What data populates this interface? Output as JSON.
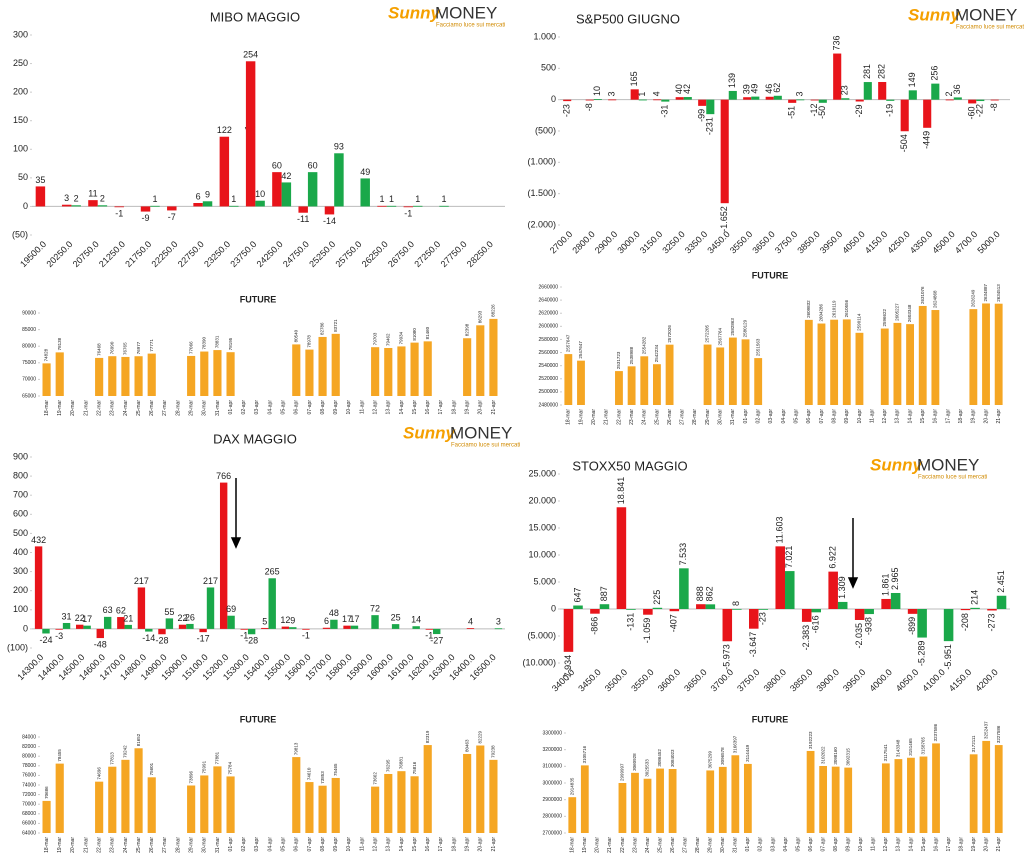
{
  "logo": {
    "brand": "Sunny",
    "name": "MONEY",
    "tagline": "Facciamo luce sui mercati"
  },
  "chart_data": [
    {
      "type": "bar",
      "title": "MIBO MAGGIO",
      "categories": [
        "19500.0",
        "20250.0",
        "20750.0",
        "21250.0",
        "21750.0",
        "22250.0",
        "22750.0",
        "23250.0",
        "23750.0",
        "24250.0",
        "24750.0",
        "25250.0",
        "25750.0",
        "26250.0",
        "26750.0",
        "27250.0",
        "27750.0",
        "28250.0"
      ],
      "series": [
        {
          "color": "#e8141a",
          "values": [
            35,
            3,
            11,
            -1,
            -9,
            -7,
            6,
            122,
            254,
            60,
            -11,
            -14,
            null,
            1,
            -1,
            null,
            null,
            null
          ]
        },
        {
          "color": "#1aa84a",
          "values": [
            null,
            2,
            2,
            null,
            1,
            null,
            9,
            1,
            10,
            42,
            60,
            93,
            49,
            1,
            1,
            1,
            null,
            null
          ]
        }
      ],
      "ylim": [
        -50,
        300
      ],
      "yticks": [
        {
          "value": -50,
          "label": "(50)"
        },
        0,
        50,
        100,
        150,
        200,
        250,
        300
      ]
    },
    {
      "type": "bar",
      "title": "FUTURE",
      "categories": [
        "18-mar",
        "19-mar",
        "20-mar",
        "21-mar",
        "22-mar",
        "23-mar",
        "24-mar",
        "25-mar",
        "26-mar",
        "27-mar",
        "28-mar",
        "29-mar",
        "30-mar",
        "31-mar",
        "01-apr",
        "02-apr",
        "03-apr",
        "04-apr",
        "05-apr",
        "06-apr",
        "07-apr",
        "08-apr",
        "09-apr",
        "10-apr",
        "11-apr",
        "12-apr",
        "13-apr",
        "14-apr",
        "15-apr",
        "16-apr",
        "17-apr",
        "18-apr",
        "19-apr",
        "20-apr",
        "21-apr"
      ],
      "series": [
        {
          "color": "#f5a623",
          "values": [
            74828,
            78138,
            null,
            null,
            76468,
            76990,
            76765,
            76977,
            77771,
            null,
            null,
            77066,
            78390,
            78831,
            78195,
            null,
            null,
            null,
            null,
            80540,
            78978,
            82786,
            83721,
            null,
            null,
            79703,
            79462,
            79934,
            81080,
            81460,
            null,
            null,
            82398,
            86293,
            88226
          ]
        }
      ],
      "ylim": [
        65000,
        90000
      ],
      "yticks": [
        65000,
        70000,
        75000,
        80000,
        85000,
        90000
      ]
    },
    {
      "type": "bar",
      "title": "S&P500 GIUGNO",
      "categories": [
        "2700.0",
        "2800.0",
        "2900.0",
        "3000.0",
        "3150.0",
        "3250.0",
        "3350.0",
        "3450.0",
        "3550.0",
        "3650.0",
        "3750.0",
        "3850.0",
        "3950.0",
        "4050.0",
        "4150.0",
        "4250.0",
        "4350.0",
        "4500.0",
        "4700.0",
        "5000.0"
      ],
      "series": [
        {
          "color": "#e8141a",
          "values": [
            -23,
            -8,
            3,
            165,
            4,
            40,
            -99,
            -1652,
            39,
            46,
            -51,
            -12,
            736,
            -29,
            282,
            -504,
            -449,
            2,
            -60,
            -8
          ],
          "value_labels": [
            "-23",
            "-8",
            "3",
            "165",
            "4",
            "40",
            "-99",
            "-1.652",
            "39",
            "46",
            "-51",
            "-12",
            "736",
            "-29",
            "282",
            "-504",
            "-449",
            "2",
            "-60",
            "-8"
          ]
        },
        {
          "color": "#1aa84a",
          "values": [
            null,
            10,
            null,
            1,
            -31,
            42,
            -231,
            139,
            49,
            62,
            3,
            -50,
            23,
            281,
            -19,
            149,
            256,
            36,
            -22,
            null
          ]
        }
      ],
      "ylim": [
        -2000,
        1000
      ],
      "yticks": [
        {
          "value": -2000,
          "label": "(2.000)"
        },
        {
          "value": -1500,
          "label": "(1.500)"
        },
        {
          "value": -1000,
          "label": "(1.000)"
        },
        {
          "value": -500,
          "label": "(500)"
        },
        0,
        500,
        {
          "value": 1000,
          "label": "1.000"
        }
      ]
    },
    {
      "type": "bar",
      "title": "FUTURE",
      "categories": [
        "18-mar",
        "19-mar",
        "20-mar",
        "21-mar",
        "22-mar",
        "23-mar",
        "24-mar",
        "25-mar",
        "26-mar",
        "27-mar",
        "28-mar",
        "29-mar",
        "30-mar",
        "31-mar",
        "01-apr",
        "02-apr",
        "03-apr",
        "04-apr",
        "05-apr",
        "06-apr",
        "07-apr",
        "08-apr",
        "09-apr",
        "10-apr",
        "11-apr",
        "12-apr",
        "13-apr",
        "14-apr",
        "15-apr",
        "16-apr",
        "17-apr",
        "18-apr",
        "19-apr",
        "20-apr",
        "21-apr"
      ],
      "series": [
        {
          "color": "#f5a623",
          "values": [
            2557647,
            2547647,
            null,
            null,
            2531723,
            2538988,
            2554282,
            2542234,
            2572026,
            null,
            null,
            2572205,
            2567764,
            2582863,
            2580129,
            2551563,
            null,
            null,
            null,
            2609832,
            2604286,
            2610119,
            2610556,
            2590114,
            null,
            2596622,
            2605227,
            2603348,
            2631076,
            2624868,
            null,
            null,
            2626249,
            2634887,
            2634513
          ]
        }
      ],
      "ylim": [
        2480000,
        2660000
      ],
      "yticks": [
        2480000,
        2500000,
        2520000,
        2540000,
        2560000,
        2580000,
        2600000,
        2620000,
        2640000,
        2660000
      ]
    },
    {
      "type": "bar",
      "title": "DAX MAGGIO",
      "categories": [
        "14300.0",
        "14400.0",
        "14500.0",
        "14600.0",
        "14700.0",
        "14800.0",
        "14900.0",
        "15000.0",
        "15100.0",
        "15200.0",
        "15300.0",
        "15400.0",
        "15500.0",
        "15600.0",
        "15700.0",
        "15800.0",
        "15900.0",
        "16000.0",
        "16100.0",
        "16200.0",
        "16300.0",
        "16400.0",
        "16500.0"
      ],
      "series": [
        {
          "color": "#e8141a",
          "values": [
            432,
            -3,
            22,
            -48,
            62,
            217,
            -28,
            22,
            -17,
            766,
            -1,
            5,
            12,
            -1,
            6,
            17,
            null,
            null,
            null,
            -1,
            null,
            4,
            null
          ]
        },
        {
          "color": "#1aa84a",
          "values": [
            -24,
            31,
            17,
            63,
            21,
            -14,
            55,
            26,
            217,
            69,
            -28,
            265,
            9,
            null,
            48,
            17,
            72,
            25,
            14,
            -27,
            null,
            null,
            3
          ]
        }
      ],
      "ylim": [
        -100,
        900
      ],
      "yticks": [
        {
          "value": -100,
          "label": "(100)"
        },
        0,
        100,
        200,
        300,
        400,
        500,
        600,
        700,
        800,
        900
      ]
    },
    {
      "type": "bar",
      "title": "FUTURE",
      "categories": [
        "18-mar",
        "19-mar",
        "20-mar",
        "21-mar",
        "22-mar",
        "23-mar",
        "24-mar",
        "25-mar",
        "26-mar",
        "27-mar",
        "28-mar",
        "29-mar",
        "30-mar",
        "31-mar",
        "01-apr",
        "02-apr",
        "03-apr",
        "04-apr",
        "05-apr",
        "06-apr",
        "07-apr",
        "08-apr",
        "09-apr",
        "10-apr",
        "11-apr",
        "12-apr",
        "13-apr",
        "14-apr",
        "15-apr",
        "16-apr",
        "17-apr",
        "18-apr",
        "19-apr",
        "20-apr",
        "21-apr"
      ],
      "series": [
        {
          "color": "#f5a623",
          "values": [
            70686,
            78455,
            null,
            null,
            74696,
            77813,
            79242,
            81652,
            75601,
            null,
            null,
            73896,
            75991,
            77881,
            75784,
            null,
            null,
            null,
            null,
            79813,
            74610,
            73853,
            75465,
            null,
            null,
            73662,
            76295,
            76881,
            75816,
            82319,
            null,
            null,
            80463,
            82229,
            79238
          ]
        }
      ],
      "ylim": [
        64000,
        84000
      ],
      "yticks": [
        64000,
        66000,
        68000,
        70000,
        72000,
        74000,
        76000,
        78000,
        80000,
        82000,
        84000
      ]
    },
    {
      "type": "bar",
      "title": "STOXX50 MAGGIO",
      "categories": [
        "3400.0",
        "3450.0",
        "3500.0",
        "3550.0",
        "3600.0",
        "3650.0",
        "3700.0",
        "3750.0",
        "3800.0",
        "3850.0",
        "3900.0",
        "3950.0",
        "4000.0",
        "4050.0",
        "4100.0",
        "4150.0",
        "4200.0"
      ],
      "series": [
        {
          "color": "#e8141a",
          "values": [
            -7934,
            -866,
            18841,
            -1059,
            -407,
            888,
            -5973,
            -3647,
            11603,
            -2383,
            6922,
            -2035,
            1861,
            -899,
            null,
            -208,
            -273
          ],
          "value_labels": [
            "-7.934",
            "-866",
            "18.841",
            "-1.059",
            "-407",
            "888",
            "-5.973",
            "-3.647",
            "11.603",
            "-2.383",
            "6.922",
            "-2.035",
            "1.861",
            "-899",
            null,
            "-208",
            "-273"
          ]
        },
        {
          "color": "#1aa84a",
          "values": [
            647,
            887,
            -131,
            225,
            7533,
            862,
            8,
            -23,
            7021,
            -616,
            1309,
            -938,
            2965,
            -5289,
            -5951,
            214,
            2451
          ],
          "value_labels": [
            "647",
            "887",
            "-131",
            "225",
            "7.533",
            "862",
            "8",
            "-23",
            "7.021",
            "-616",
            "1.309",
            "-938",
            "2.965",
            "-5.289",
            "-5.951",
            "214",
            "2.451"
          ]
        }
      ],
      "ylim": [
        -10000,
        25000
      ],
      "yticks": [
        {
          "value": -10000,
          "label": "(10.000)"
        },
        {
          "value": -5000,
          "label": "(5.000)"
        },
        0,
        {
          "value": 5000,
          "label": "5.000"
        },
        {
          "value": 10000,
          "label": "10.000"
        },
        {
          "value": 15000,
          "label": "15.000"
        },
        {
          "value": 20000,
          "label": "20.000"
        },
        {
          "value": 25000,
          "label": "25.000"
        }
      ]
    },
    {
      "type": "bar",
      "title": "FUTURE",
      "categories": [
        "18-mar",
        "19-mar",
        "20-mar",
        "21-mar",
        "22-mar",
        "23-mar",
        "24-mar",
        "25-mar",
        "26-mar",
        "27-mar",
        "28-mar",
        "29-mar",
        "30-mar",
        "31-mar",
        "01-apr",
        "02-apr",
        "03-apr",
        "04-apr",
        "05-apr",
        "06-apr",
        "07-apr",
        "08-apr",
        "09-apr",
        "10-apr",
        "11-apr",
        "12-apr",
        "13-apr",
        "14-apr",
        "15-apr",
        "16-apr",
        "17-apr",
        "18-apr",
        "19-apr",
        "20-apr",
        "21-apr"
      ],
      "series": [
        {
          "color": "#f5a623",
          "values": [
            2914835,
            3105716,
            null,
            null,
            2999997,
            3060928,
            3025533,
            3086452,
            3084023,
            null,
            null,
            3075299,
            3096578,
            3166397,
            3114449,
            null,
            null,
            null,
            null,
            3192223,
            3102022,
            3098160,
            3092315,
            null,
            null,
            3117541,
            3143348,
            3151465,
            3158765,
            3237586,
            null,
            null,
            3172111,
            3252437,
            3227586
          ]
        }
      ],
      "ylim": [
        2700000,
        3300000
      ],
      "yticks": [
        2700000,
        2800000,
        2900000,
        3000000,
        3100000,
        3200000,
        3300000
      ]
    }
  ]
}
